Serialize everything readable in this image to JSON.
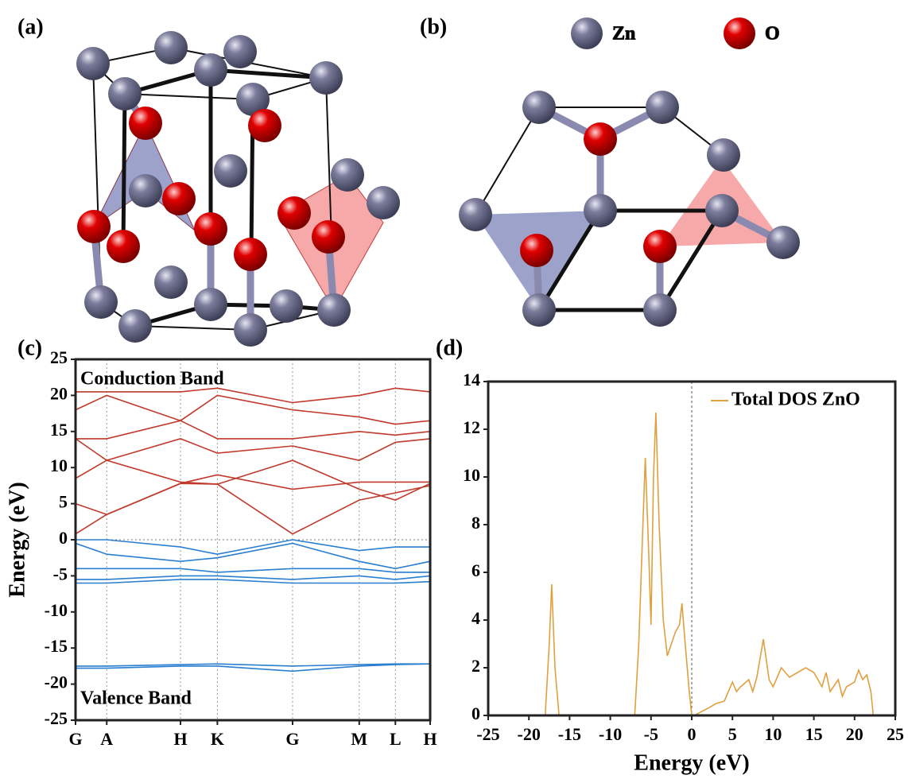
{
  "panels": {
    "a": "(a)",
    "b": "(b)",
    "c": "(c)",
    "d": "(d)"
  },
  "structure_legend": {
    "zn": "Zn",
    "o": "O"
  },
  "chart_data": [
    {
      "type": "line",
      "y_label": "Energy (eV)",
      "annotations": [
        "Conduction Band",
        "Valence Band"
      ],
      "x": [
        0,
        0.088,
        0.296,
        0.4,
        0.612,
        0.8,
        0.902,
        1
      ],
      "xlim": [
        0,
        1
      ],
      "xticks": [
        {
          "value": 0,
          "label": "G"
        },
        {
          "value": 0.088,
          "label": "A"
        },
        {
          "value": 0.296,
          "label": "H"
        },
        {
          "value": 0.4,
          "label": "K"
        },
        {
          "value": 0.612,
          "label": "G"
        },
        {
          "value": 0.8,
          "label": "M"
        },
        {
          "value": 0.902,
          "label": "L"
        },
        {
          "value": 1,
          "label": "H"
        }
      ],
      "ylim": [
        -25,
        25
      ],
      "yticks": [
        -25,
        -20,
        -15,
        -10,
        -5,
        0,
        5,
        10,
        15,
        20,
        25
      ],
      "grid": true,
      "hline": 0,
      "series": [
        {
          "color": "#c0392b",
          "values": [
            0.8,
            3.5,
            7.8,
            7.7,
            0.8,
            5.5,
            6.5,
            7.5
          ]
        },
        {
          "color": "#c0392b",
          "values": [
            5,
            3.5,
            7.8,
            9,
            7,
            8,
            8,
            8
          ]
        },
        {
          "color": "#c0392b",
          "values": [
            8.5,
            11,
            8,
            7.7,
            11,
            7,
            5.5,
            7.8
          ]
        },
        {
          "color": "#c0392b",
          "values": [
            14,
            11,
            14,
            12,
            13,
            11,
            13.5,
            14
          ]
        },
        {
          "color": "#c0392b",
          "values": [
            14,
            14,
            16.5,
            14,
            14,
            15,
            14.5,
            15
          ]
        },
        {
          "color": "#c0392b",
          "values": [
            18,
            20,
            16.5,
            20,
            18,
            17,
            16,
            16.5
          ]
        },
        {
          "color": "#c0392b",
          "values": [
            20.5,
            20.5,
            20.5,
            21,
            19,
            20,
            21,
            20.5
          ]
        },
        {
          "color": "#2a7fd0",
          "values": [
            0,
            0,
            -1,
            -2,
            0,
            -1.5,
            -1,
            -1
          ]
        },
        {
          "color": "#2a7fd0",
          "values": [
            -0.5,
            -2,
            -3,
            -2.5,
            -0.5,
            -3,
            -4,
            -3
          ]
        },
        {
          "color": "#2a7fd0",
          "values": [
            -4,
            -4,
            -4,
            -4.5,
            -4,
            -4,
            -4.5,
            -4.5
          ]
        },
        {
          "color": "#2a7fd0",
          "values": [
            -5.5,
            -5.5,
            -5,
            -5,
            -5.5,
            -5,
            -5.5,
            -5
          ]
        },
        {
          "color": "#2a7fd0",
          "values": [
            -6,
            -6,
            -5.5,
            -5.5,
            -6,
            -6,
            -6,
            -5.8
          ]
        },
        {
          "color": "#2a7fd0",
          "values": [
            -17.5,
            -17.5,
            -17.3,
            -17.2,
            -17.5,
            -17.3,
            -17.2,
            -17.2
          ]
        },
        {
          "color": "#2a7fd0",
          "values": [
            -17.8,
            -17.8,
            -17.5,
            -17.5,
            -18.2,
            -17.5,
            -17.3,
            -17.2
          ]
        }
      ]
    },
    {
      "type": "line",
      "x_label": "Energy (eV)",
      "legend": "upper right",
      "vline": 0,
      "x": [
        -25,
        -18,
        -17.5,
        -17.2,
        -16.8,
        -16.3,
        -7,
        -6.5,
        -6,
        -5.7,
        -5.3,
        -5,
        -4.7,
        -4.4,
        -4,
        -3.5,
        -3,
        -2.5,
        -2,
        -1.5,
        -1.2,
        -0.8,
        -0.3,
        0,
        0.3,
        2,
        3,
        4,
        5,
        5.5,
        6,
        7,
        7.5,
        8,
        8.8,
        9.5,
        10,
        11,
        12,
        13,
        14,
        15,
        16,
        16.5,
        17,
        18,
        18.5,
        19,
        20,
        20.5,
        21,
        21.5,
        22,
        22.3
      ],
      "xlim": [
        -25,
        25
      ],
      "xticks": [
        -25,
        -20,
        -15,
        -10,
        -5,
        0,
        5,
        10,
        15,
        20,
        25
      ],
      "ylim": [
        0,
        14
      ],
      "yticks": [
        0,
        2,
        4,
        6,
        8,
        10,
        12,
        14
      ],
      "series": [
        {
          "name": "Total DOS ZnO",
          "color": "#e0a040",
          "values": [
            0,
            0,
            3,
            5.5,
            2,
            0,
            0,
            3,
            8,
            10.8,
            7,
            3.8,
            10,
            12.7,
            8,
            4,
            2.5,
            3,
            3.5,
            3.8,
            4.7,
            3,
            1,
            0,
            0,
            0.3,
            0.5,
            0.6,
            1.4,
            1,
            1.2,
            1.5,
            1,
            1.6,
            3.2,
            1.5,
            1.2,
            2,
            1.6,
            1.8,
            2,
            1.8,
            1.2,
            1.8,
            1,
            1.5,
            0.8,
            1.2,
            1.4,
            1.9,
            1.5,
            1.7,
            1,
            0
          ]
        }
      ]
    }
  ]
}
